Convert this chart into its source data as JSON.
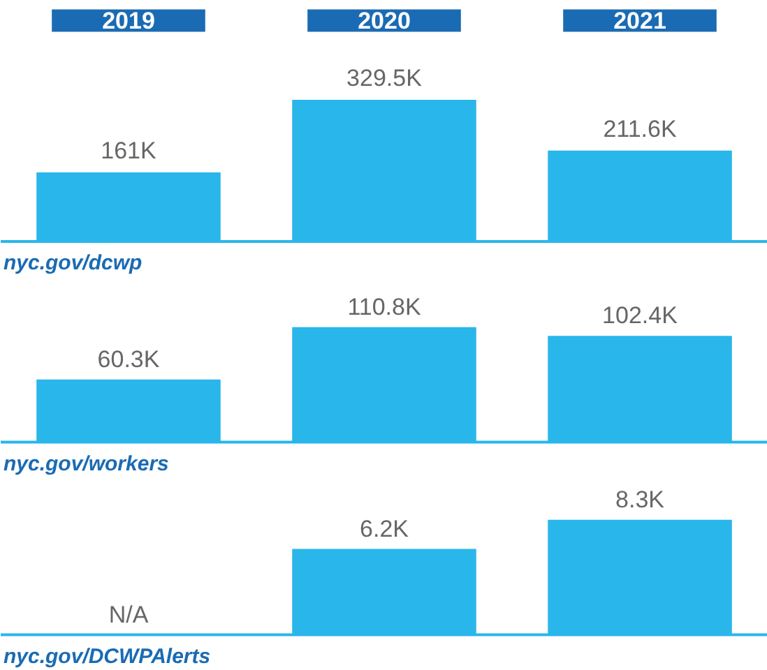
{
  "chart_data": [
    {
      "type": "bar",
      "categories": [
        "2019",
        "2020",
        "2021"
      ],
      "values": [
        161,
        329.5,
        211.6
      ],
      "value_labels": [
        "161K",
        "329.5K",
        "211.6K"
      ],
      "color": "#29b6ea",
      "xlabel": "nyc.gov/dcwp"
    },
    {
      "type": "bar",
      "categories": [
        "2019",
        "2020",
        "2021"
      ],
      "values": [
        60.3,
        110.8,
        102.4
      ],
      "value_labels": [
        "60.3K",
        "110.8K",
        "102.4K"
      ],
      "color": "#29b6ea",
      "xlabel": "nyc.gov/workers",
      "tick_labels": false
    },
    {
      "type": "bar",
      "categories": [
        "2019",
        "2020",
        "2021"
      ],
      "values": [
        null,
        6.2,
        8.3
      ],
      "value_labels": [
        "N/A",
        "6.2K",
        "8.3K"
      ],
      "color": "#29b6ea",
      "xlabel": "nyc.gov/DCWPAlerts",
      "tick_labels": false
    }
  ]
}
